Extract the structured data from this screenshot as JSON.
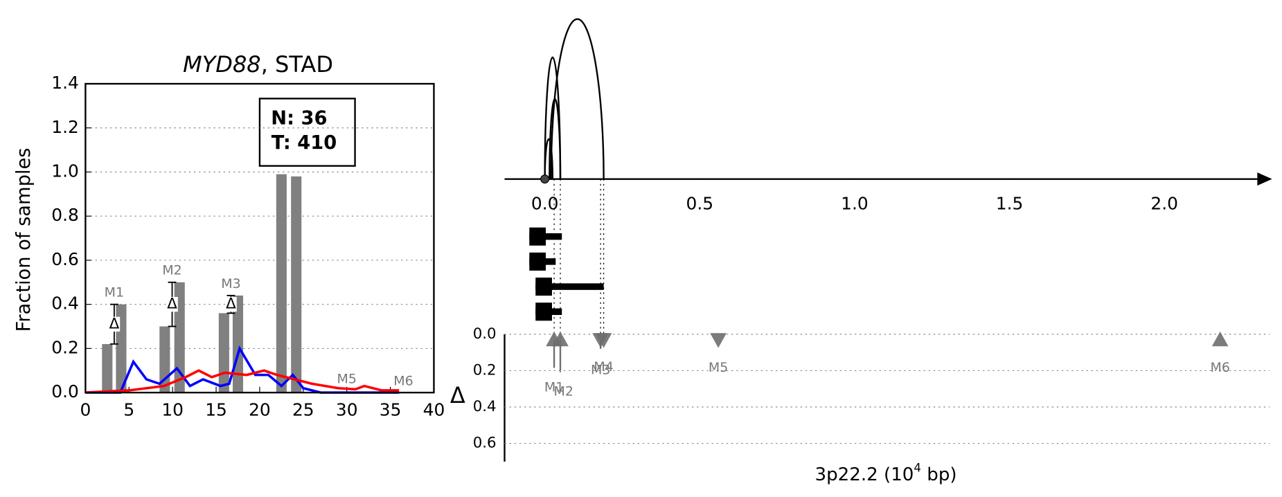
{
  "chart_data": [
    {
      "type": "bar_line",
      "title_gene": "MYD88",
      "title": ", STAD",
      "ylabel": "Fraction of samples",
      "xlim": [
        0,
        40
      ],
      "xticks": [
        0,
        5,
        10,
        15,
        20,
        25,
        30,
        35,
        40
      ],
      "ylim": [
        0,
        1.4
      ],
      "yticks": [
        {
          "value": 0,
          "label": "0.0"
        },
        0.2,
        0.4,
        0.6,
        0.8,
        {
          "value": 1,
          "label": "1.0"
        },
        1.2,
        1.4
      ],
      "grid": true,
      "legend_box": [
        "N: 36",
        "T: 410"
      ],
      "bars": {
        "color": "#808080",
        "x": [
          2.5,
          4.1,
          9.1,
          10.8,
          15.9,
          17.5,
          22.5,
          24.2
        ],
        "values": [
          0.22,
          0.4,
          0.3,
          0.5,
          0.36,
          0.44,
          0.99,
          0.98
        ]
      },
      "series": [
        {
          "color": "#0000ff",
          "x": [
            0,
            2,
            4,
            5.5,
            7,
            8.5,
            10.5,
            12,
            13.5,
            15.5,
            16.5,
            17.7,
            19.5,
            21,
            22.5,
            23.8,
            25,
            27,
            30,
            33,
            36
          ],
          "values": [
            0,
            0,
            0,
            0.14,
            0.06,
            0.04,
            0.11,
            0.03,
            0.06,
            0.03,
            0.04,
            0.2,
            0.08,
            0.08,
            0.03,
            0.08,
            0.02,
            0,
            0,
            0,
            0
          ]
        },
        {
          "color": "#ff0000",
          "x": [
            0,
            5,
            9,
            11.5,
            13,
            14.5,
            16,
            18.5,
            20.5,
            22,
            24,
            26,
            29,
            31,
            32,
            34,
            36
          ],
          "values": [
            0,
            0.01,
            0.03,
            0.07,
            0.1,
            0.07,
            0.09,
            0.08,
            0.1,
            0.08,
            0.06,
            0.04,
            0.02,
            0.015,
            0.03,
            0.01,
            0.01
          ]
        }
      ],
      "annotations": [
        "M1",
        "M2",
        "M3",
        "M5",
        "M6"
      ],
      "delta_symbol": "Δ"
    },
    {
      "type": "arc_track",
      "xlim": [
        -0.13,
        2.3
      ],
      "xticks": [
        {
          "value": 0,
          "label": "0.0"
        },
        0.5,
        {
          "value": 1,
          "label": "1.0"
        },
        1.5,
        {
          "value": 2,
          "label": "2.0"
        }
      ],
      "arcs": {
        "start": [
          0.02,
          0,
          0.015,
          0
        ],
        "end": [
          0.19,
          0.05,
          0.05,
          0.025
        ],
        "height": [
          1.0,
          0.76,
          0.5,
          0.25
        ]
      },
      "intervals": {
        "start": [
          -0.05,
          -0.05,
          -0.03,
          -0.03
        ],
        "end": [
          0.055,
          0.035,
          0.19,
          0.055
        ]
      },
      "ylabel": "Δ",
      "xlabel": "3p22.2 (10",
      "xlabel_sup": "4",
      "xlabel_end": " bp)",
      "ylim": [
        0,
        0.7
      ],
      "yticks": [
        {
          "value": 0,
          "label": "0.0"
        },
        0.2,
        0.4,
        0.6
      ],
      "markers": {
        "names": [
          "M1",
          "M2",
          "M3",
          "M4",
          "M5",
          "M6"
        ],
        "x": [
          0.03,
          0.05,
          0.18,
          0.19,
          0.56,
          2.18
        ],
        "values": [
          0.18,
          0.2,
          0.08,
          0.03,
          0,
          0
        ],
        "direction": [
          "up",
          "up",
          "down",
          "down",
          "down",
          "up"
        ],
        "color": "#6e6e6e"
      }
    }
  ]
}
